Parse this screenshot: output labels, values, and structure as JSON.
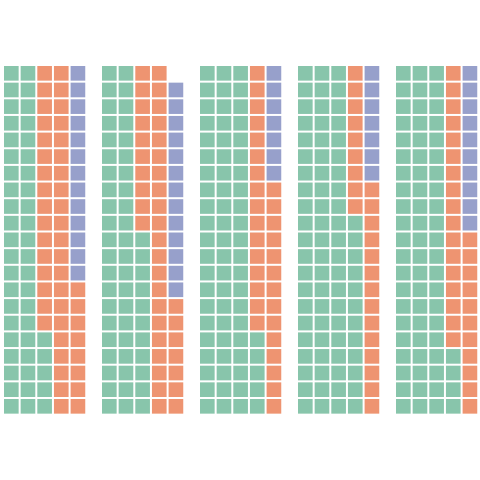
{
  "chart_data": {
    "type": "waffle",
    "rows": 21,
    "columns": 5,
    "series": [
      {
        "color": "#88c5ab",
        "values": [
          47,
          53,
          68,
          75,
          67
        ]
      },
      {
        "color": "#ee9471",
        "values": [
          45,
          38,
          30,
          23,
          28
        ]
      },
      {
        "color": "#97a0cb",
        "values": [
          13,
          13,
          7,
          7,
          10
        ]
      }
    ]
  }
}
